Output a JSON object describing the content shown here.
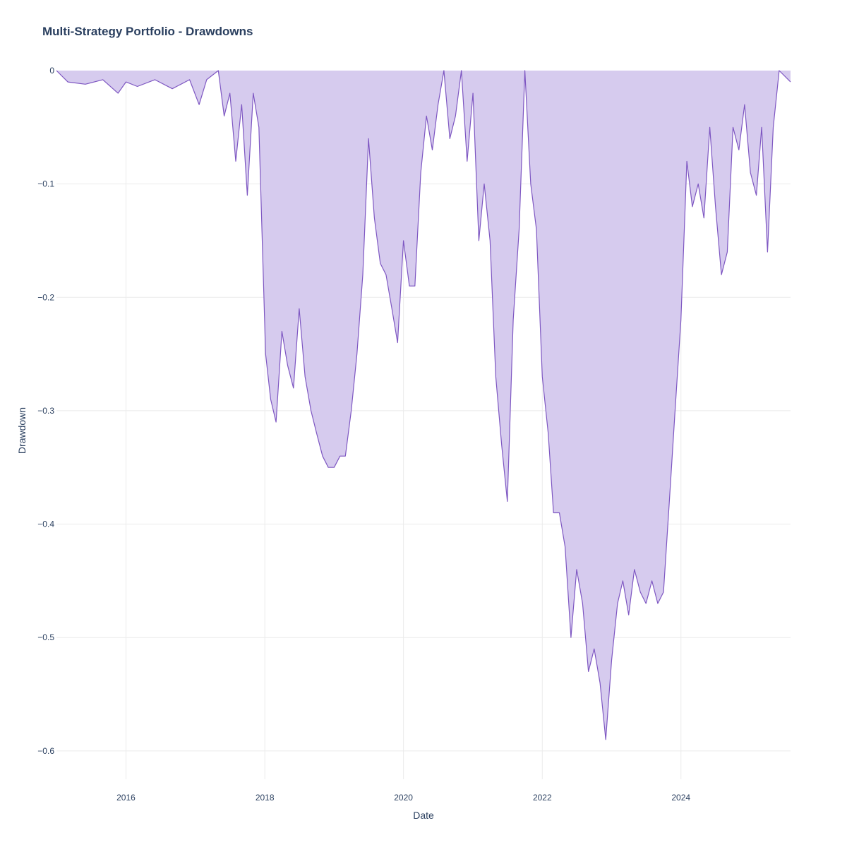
{
  "chart_data": {
    "type": "area",
    "title": "Multi-Strategy Portfolio - Drawdowns",
    "xlabel": "Date",
    "ylabel": "Drawdown",
    "x_ticks": [
      "2016",
      "2018",
      "2020",
      "2022",
      "2024"
    ],
    "y_ticks": [
      "0",
      "−0.1",
      "−0.2",
      "−0.3",
      "−0.4",
      "−0.5",
      "−0.6"
    ],
    "y_tick_values": [
      0,
      -0.1,
      -0.2,
      -0.3,
      -0.4,
      -0.5,
      -0.6
    ],
    "xlim": [
      "2014-12-31",
      "2025-07-31"
    ],
    "ylim": [
      -0.625,
      0
    ],
    "grid": true,
    "colors": {
      "line": "#7e57c2",
      "fill": "#d6cbee",
      "text": "#2a3f5f",
      "grid": "#ebebeb"
    },
    "series": [
      {
        "x": [
          "2014-12-31",
          "2015-03-01",
          "2015-06-01",
          "2015-09-01",
          "2015-11-20",
          "2016-01-01",
          "2016-03-01",
          "2016-06-01",
          "2016-09-01",
          "2016-12-01",
          "2017-01-20",
          "2017-03-01",
          "2017-05-01",
          "2017-06-01",
          "2017-07-01",
          "2017-08-01",
          "2017-09-01",
          "2017-10-01",
          "2017-11-01",
          "2017-12-01",
          "2018-01-05",
          "2018-02-01",
          "2018-03-01",
          "2018-04-01",
          "2018-05-01",
          "2018-06-01",
          "2018-07-01",
          "2018-08-01",
          "2018-09-01",
          "2018-10-01",
          "2018-11-01",
          "2018-12-01",
          "2019-01-01",
          "2019-02-01",
          "2019-03-01",
          "2019-04-01",
          "2019-05-01",
          "2019-06-01",
          "2019-07-01",
          "2019-08-01",
          "2019-09-01",
          "2019-10-01",
          "2019-11-01",
          "2019-12-01",
          "2020-01-01",
          "2020-02-01",
          "2020-03-01",
          "2020-04-01",
          "2020-05-01",
          "2020-06-01",
          "2020-07-01",
          "2020-08-01",
          "2020-09-01",
          "2020-10-01",
          "2020-11-01",
          "2020-12-01",
          "2021-01-01",
          "2021-02-01",
          "2021-03-01",
          "2021-04-01",
          "2021-05-01",
          "2021-06-01",
          "2021-07-01",
          "2021-08-01",
          "2021-09-01",
          "2021-10-01",
          "2021-11-01",
          "2021-12-01",
          "2022-01-01",
          "2022-02-01",
          "2022-03-01",
          "2022-04-01",
          "2022-05-01",
          "2022-06-01",
          "2022-07-01",
          "2022-08-01",
          "2022-09-01",
          "2022-10-01",
          "2022-11-01",
          "2022-12-01",
          "2023-01-01",
          "2023-02-01",
          "2023-03-01",
          "2023-04-01",
          "2023-05-01",
          "2023-06-01",
          "2023-07-01",
          "2023-08-01",
          "2023-09-01",
          "2023-10-01",
          "2023-11-01",
          "2023-12-01",
          "2024-01-01",
          "2024-02-01",
          "2024-03-01",
          "2024-04-01",
          "2024-05-01",
          "2024-06-01",
          "2024-07-01",
          "2024-08-01",
          "2024-09-01",
          "2024-10-01",
          "2024-11-01",
          "2024-12-01",
          "2025-01-01",
          "2025-02-01",
          "2025-03-01",
          "2025-04-01",
          "2025-05-01",
          "2025-06-01",
          "2025-07-31"
        ],
        "y": [
          0,
          -0.01,
          -0.012,
          -0.008,
          -0.02,
          -0.01,
          -0.014,
          -0.008,
          -0.016,
          -0.008,
          -0.03,
          -0.008,
          0,
          -0.04,
          -0.02,
          -0.08,
          -0.03,
          -0.11,
          -0.02,
          -0.05,
          -0.25,
          -0.29,
          -0.31,
          -0.23,
          -0.26,
          -0.28,
          -0.21,
          -0.27,
          -0.3,
          -0.32,
          -0.34,
          -0.35,
          -0.35,
          -0.34,
          -0.34,
          -0.3,
          -0.25,
          -0.18,
          -0.06,
          -0.13,
          -0.17,
          -0.18,
          -0.21,
          -0.24,
          -0.15,
          -0.19,
          -0.19,
          -0.09,
          -0.04,
          -0.07,
          -0.03,
          0,
          -0.06,
          -0.04,
          0,
          -0.08,
          -0.02,
          -0.15,
          -0.1,
          -0.15,
          -0.27,
          -0.33,
          -0.38,
          -0.22,
          -0.14,
          0,
          -0.1,
          -0.14,
          -0.27,
          -0.32,
          -0.39,
          -0.39,
          -0.42,
          -0.5,
          -0.44,
          -0.47,
          -0.53,
          -0.51,
          -0.54,
          -0.59,
          -0.52,
          -0.47,
          -0.45,
          -0.48,
          -0.44,
          -0.46,
          -0.47,
          -0.45,
          -0.47,
          -0.46,
          -0.38,
          -0.3,
          -0.22,
          -0.08,
          -0.12,
          -0.1,
          -0.13,
          -0.05,
          -0.12,
          -0.18,
          -0.16,
          -0.05,
          -0.07,
          -0.03,
          -0.09,
          -0.11,
          -0.05,
          -0.16,
          -0.05,
          0,
          -0.01
        ]
      }
    ]
  }
}
